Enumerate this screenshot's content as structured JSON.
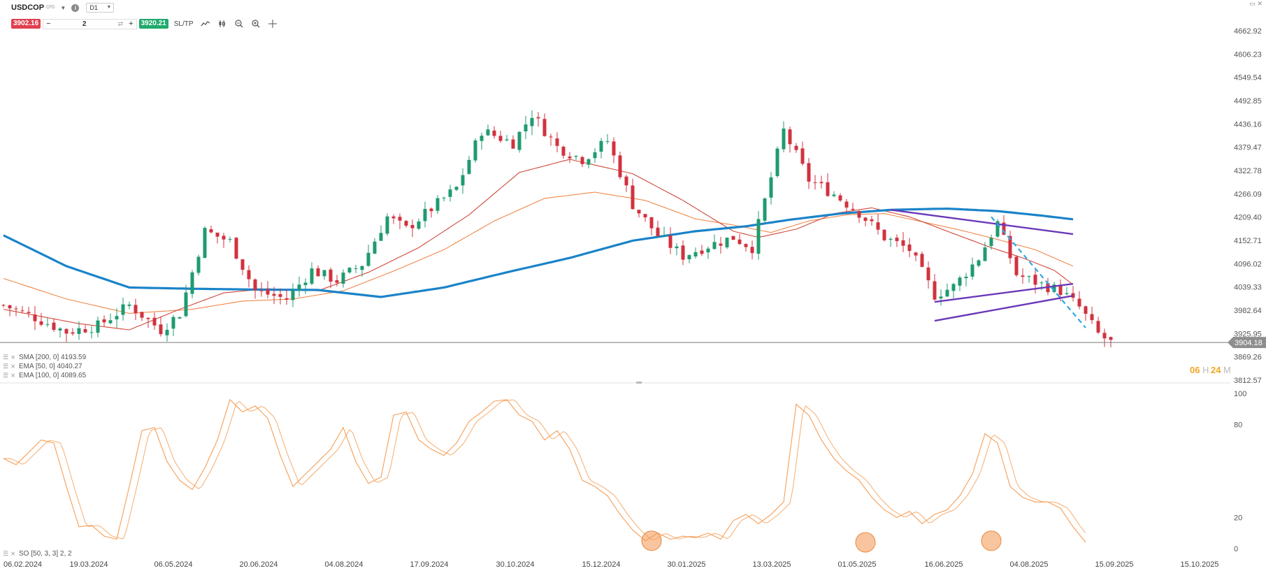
{
  "header": {
    "symbol": "USDCOP",
    "symbol_type": "CFD",
    "timeframe": "D1",
    "sell_price": "3902.16",
    "buy_price": "3920.21",
    "quantity": "2",
    "minus": "−",
    "plus": "+",
    "sltp_label": "SL/TP"
  },
  "icons": [
    "info-icon",
    "line-chart-icon",
    "candles-icon",
    "zoom-out-icon",
    "zoom-in-icon",
    "crosshair-icon",
    "swap-icon",
    "window-icon",
    "close-icon"
  ],
  "colors": {
    "up": "#1f9b6f",
    "down": "#d1323f",
    "sma200": "#1a83c9",
    "ema50": "#cf4a3a",
    "ema100": "#f0874a",
    "channel": "#6a38b8",
    "trend_dashed": "#2ea8e6",
    "stoch": "#f59e58"
  },
  "timer": {
    "h": "06",
    "h_unit": "H",
    "m": "24",
    "m_unit": "M"
  },
  "chart_data": [
    {
      "type": "candlestick",
      "symbol": "USDCOP",
      "timeframe": "D1",
      "yaxis": {
        "ticks": [
          "4662.92",
          "4606.23",
          "4549.54",
          "4492.85",
          "4436.16",
          "4379.47",
          "4322.78",
          "4266.09",
          "4209.40",
          "4152.71",
          "4096.02",
          "4039.33",
          "3982.64",
          "3925.95",
          "3869.26",
          "3812.57"
        ],
        "range": [
          3812.57,
          4662.92
        ]
      },
      "xaxis": {
        "ticks": [
          "06.02.2024",
          "19.03.2024",
          "06.05.2024",
          "20.06.2024",
          "04.08.2024",
          "17.09.2024",
          "30.10.2024",
          "15.12.2024",
          "30.01.2025",
          "13.03.2025",
          "01.05.2025",
          "16.06.2025",
          "04.08.2025",
          "15.09.2025",
          "15.10.2025"
        ]
      },
      "current_price": "3904.18",
      "legend": [
        "SMA [200, 0] 4193.59",
        "EMA [50, 0] 4040.27",
        "EMA [100, 0] 4089.65"
      ],
      "close_anchors": [
        [
          0,
          3995
        ],
        [
          5,
          3965
        ],
        [
          10,
          3930
        ],
        [
          15,
          3945
        ],
        [
          20,
          3995
        ],
        [
          25,
          3935
        ],
        [
          28,
          3975
        ],
        [
          32,
          4175
        ],
        [
          36,
          4150
        ],
        [
          40,
          4030
        ],
        [
          45,
          4010
        ],
        [
          49,
          4080
        ],
        [
          53,
          4055
        ],
        [
          57,
          4095
        ],
        [
          61,
          4210
        ],
        [
          64,
          4180
        ],
        [
          68,
          4230
        ],
        [
          72,
          4280
        ],
        [
          76,
          4420
        ],
        [
          81,
          4390
        ],
        [
          84,
          4460
        ],
        [
          88,
          4380
        ],
        [
          92,
          4350
        ],
        [
          96,
          4395
        ],
        [
          100,
          4240
        ],
        [
          104,
          4165
        ],
        [
          108,
          4115
        ],
        [
          112,
          4140
        ],
        [
          116,
          4160
        ],
        [
          119,
          4135
        ],
        [
          124,
          4420
        ],
        [
          128,
          4300
        ],
        [
          132,
          4265
        ],
        [
          136,
          4220
        ],
        [
          140,
          4160
        ],
        [
          144,
          4130
        ],
        [
          148,
          4020
        ],
        [
          151,
          4040
        ],
        [
          155,
          4110
        ],
        [
          158,
          4195
        ],
        [
          161,
          4070
        ],
        [
          165,
          4045
        ],
        [
          168,
          4030
        ],
        [
          171,
          3990
        ],
        [
          174,
          3925
        ],
        [
          176,
          3904
        ]
      ],
      "sma200_anchors": [
        [
          0,
          4165
        ],
        [
          10,
          4090
        ],
        [
          20,
          4038
        ],
        [
          30,
          4035
        ],
        [
          40,
          4033
        ],
        [
          50,
          4032
        ],
        [
          60,
          4015
        ],
        [
          70,
          4038
        ],
        [
          80,
          4075
        ],
        [
          90,
          4110
        ],
        [
          100,
          4152
        ],
        [
          110,
          4175
        ],
        [
          118,
          4187
        ],
        [
          125,
          4203
        ],
        [
          133,
          4218
        ],
        [
          141,
          4227
        ],
        [
          150,
          4230
        ],
        [
          158,
          4224
        ],
        [
          165,
          4213
        ],
        [
          170,
          4204
        ]
      ],
      "ema50_anchors": [
        [
          0,
          3985
        ],
        [
          12,
          3950
        ],
        [
          20,
          3935
        ],
        [
          28,
          3985
        ],
        [
          35,
          4025
        ],
        [
          42,
          4035
        ],
        [
          50,
          4030
        ],
        [
          58,
          4075
        ],
        [
          66,
          4135
        ],
        [
          74,
          4215
        ],
        [
          82,
          4318
        ],
        [
          90,
          4350
        ],
        [
          100,
          4315
        ],
        [
          108,
          4250
        ],
        [
          116,
          4175
        ],
        [
          120,
          4160
        ],
        [
          126,
          4180
        ],
        [
          132,
          4218
        ],
        [
          138,
          4232
        ],
        [
          144,
          4210
        ],
        [
          150,
          4175
        ],
        [
          157,
          4135
        ],
        [
          162,
          4110
        ],
        [
          167,
          4080
        ],
        [
          170,
          4045
        ]
      ],
      "ema100_anchors": [
        [
          0,
          4060
        ],
        [
          10,
          4010
        ],
        [
          20,
          3975
        ],
        [
          30,
          3985
        ],
        [
          38,
          4005
        ],
        [
          46,
          4010
        ],
        [
          54,
          4030
        ],
        [
          62,
          4078
        ],
        [
          70,
          4130
        ],
        [
          78,
          4200
        ],
        [
          86,
          4255
        ],
        [
          94,
          4270
        ],
        [
          102,
          4250
        ],
        [
          110,
          4205
        ],
        [
          116,
          4190
        ],
        [
          122,
          4172
        ],
        [
          128,
          4200
        ],
        [
          134,
          4215
        ],
        [
          140,
          4218
        ],
        [
          146,
          4198
        ],
        [
          152,
          4178
        ],
        [
          158,
          4155
        ],
        [
          164,
          4130
        ],
        [
          170,
          4090
        ]
      ],
      "drawings": {
        "channel_upper": [
          [
            141,
            4227
          ],
          [
            170,
            4168
          ]
        ],
        "channel_mid": [
          [
            148,
            4003
          ],
          [
            170,
            4047
          ]
        ],
        "channel_lower": [
          [
            148,
            3957
          ],
          [
            170,
            4018
          ]
        ],
        "trend_dashed": [
          [
            157,
            4210
          ],
          [
            172,
            3940
          ]
        ]
      }
    },
    {
      "type": "line",
      "title": "SO [50, 3, 3] 2, 2",
      "yaxis": {
        "ticks": [
          "100",
          "80",
          "20",
          "0"
        ],
        "range": [
          0,
          100
        ]
      },
      "k_anchors": [
        [
          0,
          58
        ],
        [
          2,
          54
        ],
        [
          4,
          62
        ],
        [
          6,
          70
        ],
        [
          8,
          68
        ],
        [
          10,
          40
        ],
        [
          12,
          14
        ],
        [
          14,
          15
        ],
        [
          16,
          8
        ],
        [
          18,
          6
        ],
        [
          20,
          40
        ],
        [
          22,
          76
        ],
        [
          24,
          78
        ],
        [
          26,
          56
        ],
        [
          28,
          44
        ],
        [
          30,
          38
        ],
        [
          32,
          52
        ],
        [
          34,
          70
        ],
        [
          36,
          96
        ],
        [
          38,
          88
        ],
        [
          40,
          92
        ],
        [
          42,
          84
        ],
        [
          44,
          60
        ],
        [
          46,
          40
        ],
        [
          48,
          48
        ],
        [
          50,
          56
        ],
        [
          52,
          64
        ],
        [
          54,
          78
        ],
        [
          56,
          56
        ],
        [
          58,
          42
        ],
        [
          60,
          46
        ],
        [
          62,
          86
        ],
        [
          64,
          88
        ],
        [
          66,
          70
        ],
        [
          68,
          64
        ],
        [
          70,
          60
        ],
        [
          72,
          68
        ],
        [
          74,
          82
        ],
        [
          76,
          88
        ],
        [
          78,
          95
        ],
        [
          80,
          96
        ],
        [
          82,
          86
        ],
        [
          84,
          82
        ],
        [
          86,
          70
        ],
        [
          88,
          76
        ],
        [
          90,
          64
        ],
        [
          92,
          44
        ],
        [
          94,
          40
        ],
        [
          96,
          34
        ],
        [
          98,
          22
        ],
        [
          100,
          12
        ],
        [
          102,
          5
        ],
        [
          104,
          10
        ],
        [
          106,
          6
        ],
        [
          108,
          8
        ],
        [
          110,
          7
        ],
        [
          112,
          10
        ],
        [
          114,
          6
        ],
        [
          116,
          18
        ],
        [
          118,
          22
        ],
        [
          120,
          16
        ],
        [
          122,
          22
        ],
        [
          124,
          30
        ],
        [
          126,
          93
        ],
        [
          128,
          86
        ],
        [
          130,
          70
        ],
        [
          132,
          58
        ],
        [
          134,
          50
        ],
        [
          136,
          44
        ],
        [
          138,
          33
        ],
        [
          140,
          25
        ],
        [
          142,
          20
        ],
        [
          144,
          24
        ],
        [
          146,
          16
        ],
        [
          148,
          22
        ],
        [
          150,
          25
        ],
        [
          152,
          34
        ],
        [
          154,
          48
        ],
        [
          156,
          74
        ],
        [
          158,
          68
        ],
        [
          160,
          40
        ],
        [
          162,
          33
        ],
        [
          164,
          30
        ],
        [
          166,
          30
        ],
        [
          168,
          26
        ],
        [
          170,
          14
        ],
        [
          172,
          4
        ]
      ],
      "highlights": [
        [
          103,
          5
        ],
        [
          137,
          4
        ],
        [
          157,
          5
        ]
      ]
    }
  ]
}
